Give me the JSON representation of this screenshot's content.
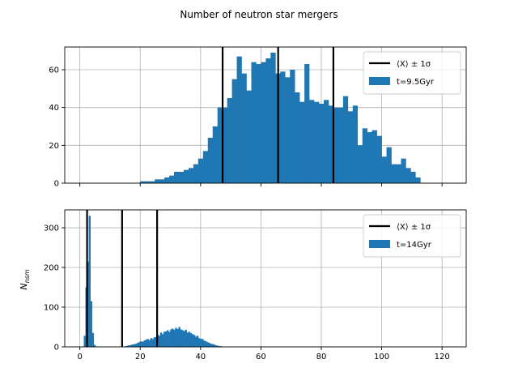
{
  "figure": {
    "title": "Number of neutron star mergers",
    "ylabel_main": "N",
    "ylabel_sub": "nsm"
  },
  "colors": {
    "bar": "#1f77b4",
    "line": "#000000",
    "grid": "#b0b0b0"
  },
  "chart_data": [
    {
      "type": "bar",
      "subtype": "histogram",
      "title": "",
      "xlim": [
        -5,
        128
      ],
      "ylim": [
        0,
        72
      ],
      "xticks": [
        0,
        20,
        40,
        60,
        80,
        100,
        120
      ],
      "xtick_labels_visible": false,
      "yticks": [
        0,
        20,
        40,
        60
      ],
      "grid": true,
      "legend_position": "upper right",
      "legend": [
        {
          "type": "line",
          "label": "⟨X⟩ ± 1σ"
        },
        {
          "type": "patch",
          "label": "t=9.5Gyr"
        }
      ],
      "bins": {
        "start": 20.0,
        "width": 1.6
      },
      "values": [
        1,
        1,
        1,
        2,
        2,
        3,
        4,
        6,
        6,
        7,
        8,
        10,
        13,
        17,
        24,
        30,
        40,
        40,
        45,
        55,
        67,
        58,
        49,
        64,
        63,
        64,
        66,
        69,
        58,
        59,
        56,
        60,
        48,
        43,
        63,
        44,
        43,
        42,
        44,
        41,
        40,
        40,
        46,
        38,
        41,
        20,
        29,
        27,
        28,
        25,
        14,
        19,
        10,
        10,
        13,
        8,
        6,
        3
      ],
      "vlines": [
        47.3,
        65.7,
        84.0
      ]
    },
    {
      "type": "bar",
      "subtype": "histogram",
      "title": "",
      "xlim": [
        -5,
        128
      ],
      "ylim": [
        0,
        345
      ],
      "xticks": [
        0,
        20,
        40,
        60,
        80,
        100,
        120
      ],
      "xtick_labels_visible": true,
      "yticks": [
        0,
        100,
        200,
        300
      ],
      "grid": true,
      "legend_position": "upper right",
      "legend": [
        {
          "type": "line",
          "label": "⟨X⟩ ± 1σ"
        },
        {
          "type": "patch",
          "label": "t=14Gyr"
        }
      ],
      "bins": {
        "start": 1.3,
        "width": 0.55
      },
      "values": [
        28,
        150,
        215,
        330,
        115,
        35,
        5,
        0,
        0,
        0,
        0,
        0,
        0,
        0,
        0,
        0,
        0,
        0,
        0,
        0,
        0,
        0,
        0,
        0,
        0,
        2,
        3,
        4,
        5,
        6,
        7,
        8,
        10,
        12,
        14,
        13,
        16,
        18,
        20,
        17,
        22,
        20,
        24,
        25,
        30,
        28,
        36,
        32,
        38,
        39,
        42,
        38,
        44,
        46,
        43,
        48,
        45,
        50,
        44,
        42,
        40,
        43,
        36,
        38,
        35,
        32,
        30,
        26,
        28,
        22,
        20,
        20,
        16,
        14,
        12,
        10,
        8,
        7,
        6,
        4,
        3,
        2,
        2,
        1
      ],
      "vlines": [
        2.4,
        14.0,
        25.6
      ]
    }
  ]
}
